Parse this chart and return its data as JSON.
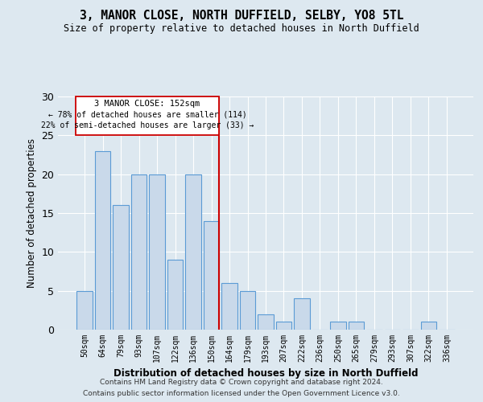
{
  "title": "3, MANOR CLOSE, NORTH DUFFIELD, SELBY, YO8 5TL",
  "subtitle": "Size of property relative to detached houses in North Duffield",
  "xlabel": "Distribution of detached houses by size in North Duffield",
  "ylabel": "Number of detached properties",
  "categories": [
    "50sqm",
    "64sqm",
    "79sqm",
    "93sqm",
    "107sqm",
    "122sqm",
    "136sqm",
    "150sqm",
    "164sqm",
    "179sqm",
    "193sqm",
    "207sqm",
    "222sqm",
    "236sqm",
    "250sqm",
    "265sqm",
    "279sqm",
    "293sqm",
    "307sqm",
    "322sqm",
    "336sqm"
  ],
  "values": [
    5,
    23,
    16,
    20,
    20,
    9,
    20,
    14,
    6,
    5,
    2,
    1,
    4,
    0,
    1,
    1,
    0,
    0,
    0,
    1,
    0
  ],
  "bar_color": "#c9d9ea",
  "bar_edge_color": "#5b9bd5",
  "property_line_label": "3 MANOR CLOSE: 152sqm",
  "annotation_line1": "← 78% of detached houses are smaller (114)",
  "annotation_line2": "22% of semi-detached houses are larger (33) →",
  "annotation_box_color": "#ffffff",
  "annotation_box_edge": "#cc0000",
  "vline_color": "#cc0000",
  "ylim": [
    0,
    30
  ],
  "yticks": [
    0,
    5,
    10,
    15,
    20,
    25,
    30
  ],
  "footer1": "Contains HM Land Registry data © Crown copyright and database right 2024.",
  "footer2": "Contains public sector information licensed under the Open Government Licence v3.0.",
  "bg_color": "#dde8f0",
  "plot_bg_color": "#dde8f0"
}
